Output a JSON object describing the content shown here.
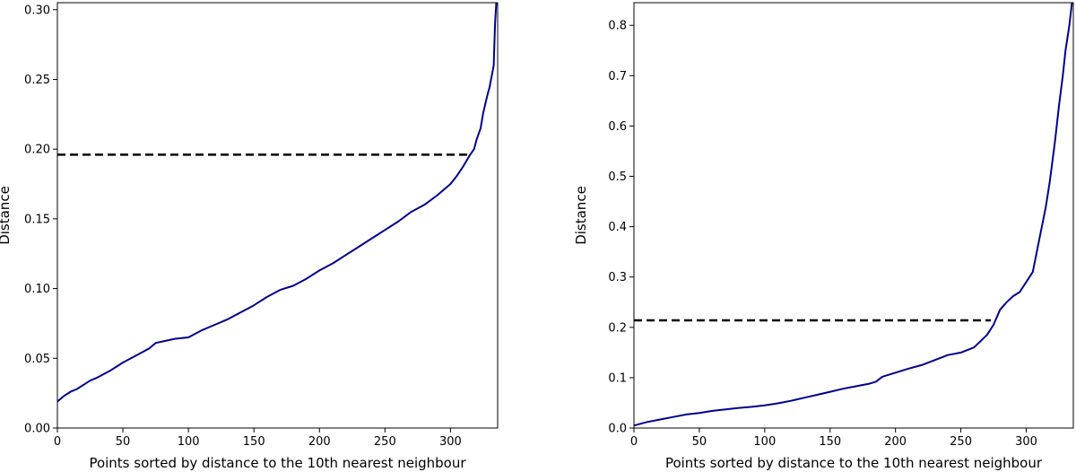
{
  "chart_data": [
    {
      "type": "line",
      "title": "",
      "xlabel": "Points sorted by distance to the 10th nearest neighbour",
      "ylabel": "Distance",
      "xlim": [
        0,
        336
      ],
      "ylim": [
        0,
        0.305
      ],
      "xticks": [
        0,
        50,
        100,
        150,
        200,
        250,
        300
      ],
      "xtick_labels": [
        "0",
        "50",
        "100",
        "150",
        "200",
        "250",
        "300"
      ],
      "yticks": [
        0,
        0.05,
        0.1,
        0.15,
        0.2,
        0.25,
        0.3
      ],
      "ytick_labels": [
        "0.00",
        "0.05",
        "0.10",
        "0.15",
        "0.20",
        "0.25",
        "0.30"
      ],
      "grid": false,
      "series": [
        {
          "color": "#00008b",
          "style": "solid",
          "x": [
            0,
            5,
            10,
            15,
            20,
            25,
            30,
            40,
            50,
            60,
            70,
            75,
            80,
            90,
            100,
            110,
            120,
            130,
            140,
            150,
            160,
            170,
            180,
            190,
            200,
            210,
            220,
            230,
            240,
            250,
            260,
            270,
            280,
            290,
            300,
            305,
            310,
            315,
            318,
            320,
            323,
            325,
            328,
            330,
            333,
            334,
            335
          ],
          "y": [
            0.019,
            0.023,
            0.026,
            0.028,
            0.031,
            0.034,
            0.036,
            0.041,
            0.047,
            0.052,
            0.057,
            0.061,
            0.062,
            0.064,
            0.065,
            0.07,
            0.074,
            0.078,
            0.083,
            0.088,
            0.094,
            0.099,
            0.102,
            0.107,
            0.113,
            0.118,
            0.124,
            0.13,
            0.136,
            0.142,
            0.148,
            0.155,
            0.16,
            0.167,
            0.175,
            0.181,
            0.188,
            0.196,
            0.2,
            0.207,
            0.215,
            0.226,
            0.238,
            0.245,
            0.26,
            0.29,
            0.305
          ]
        },
        {
          "color": "#000000",
          "style": "dashed",
          "x": [
            0,
            316
          ],
          "y": [
            0.196,
            0.196
          ]
        }
      ]
    },
    {
      "type": "line",
      "title": "",
      "xlabel": "Points sorted by distance to the 10th nearest neighbour",
      "ylabel": "Distance",
      "xlim": [
        0,
        336
      ],
      "ylim": [
        0,
        0.845
      ],
      "xticks": [
        0,
        50,
        100,
        150,
        200,
        250,
        300
      ],
      "xtick_labels": [
        "0",
        "50",
        "100",
        "150",
        "200",
        "250",
        "300"
      ],
      "yticks": [
        0,
        0.1,
        0.2,
        0.3,
        0.4,
        0.5,
        0.6,
        0.7,
        0.8
      ],
      "ytick_labels": [
        "0.0",
        "0.1",
        "0.2",
        "0.3",
        "0.4",
        "0.5",
        "0.6",
        "0.7",
        "0.8"
      ],
      "grid": false,
      "series": [
        {
          "color": "#00008b",
          "style": "solid",
          "x": [
            0,
            10,
            20,
            30,
            40,
            50,
            60,
            70,
            80,
            90,
            100,
            110,
            120,
            130,
            140,
            150,
            160,
            170,
            180,
            185,
            190,
            200,
            210,
            220,
            230,
            240,
            250,
            260,
            270,
            275,
            280,
            285,
            290,
            295,
            300,
            305,
            310,
            315,
            318,
            320,
            322,
            325,
            328,
            330,
            333,
            335
          ],
          "y": [
            0.005,
            0.012,
            0.017,
            0.022,
            0.027,
            0.03,
            0.034,
            0.037,
            0.04,
            0.042,
            0.045,
            0.049,
            0.054,
            0.06,
            0.066,
            0.072,
            0.078,
            0.083,
            0.088,
            0.092,
            0.102,
            0.11,
            0.118,
            0.125,
            0.135,
            0.145,
            0.15,
            0.16,
            0.185,
            0.205,
            0.235,
            0.25,
            0.262,
            0.27,
            0.29,
            0.31,
            0.375,
            0.44,
            0.49,
            0.53,
            0.57,
            0.64,
            0.7,
            0.75,
            0.8,
            0.845
          ]
        },
        {
          "color": "#000000",
          "style": "dashed",
          "x": [
            0,
            273
          ],
          "y": [
            0.214,
            0.214
          ]
        }
      ]
    }
  ]
}
